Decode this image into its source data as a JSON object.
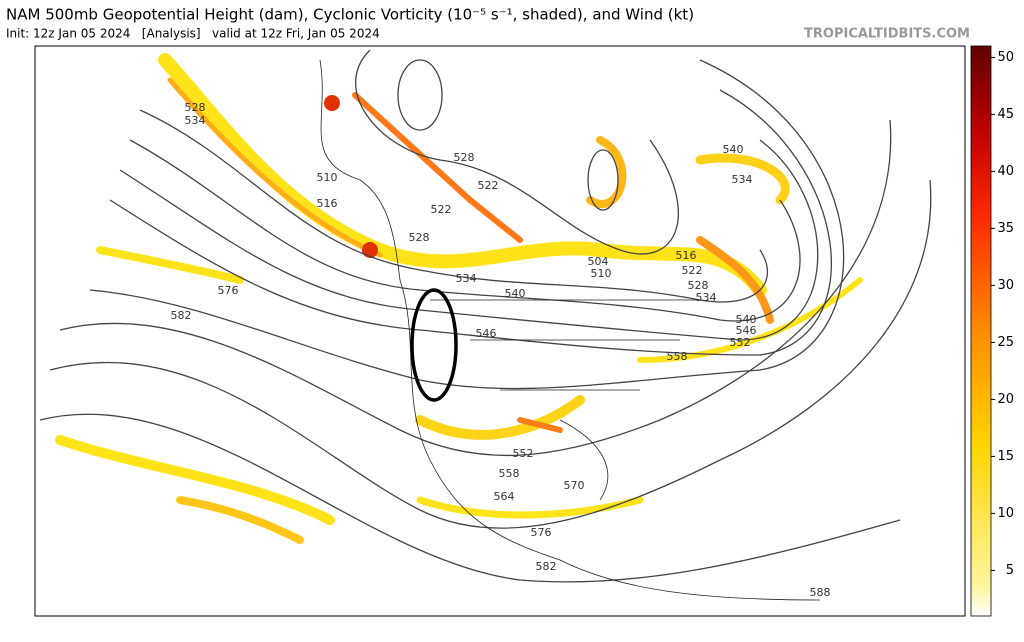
{
  "header": {
    "title": "NAM 500mb Geopotential Height (dam), Cyclonic Vorticity (10⁻⁵ s⁻¹, shaded), and Wind (kt)",
    "subtitle": "Init: 12z Jan 05 2024   [Analysis]   valid at 12z Fri, Jan 05 2024",
    "watermark": "TROPICALTIDBITS.COM"
  },
  "contour_labels": [
    528,
    534,
    510,
    516,
    528,
    522,
    522,
    528,
    534,
    540,
    546,
    504,
    510,
    516,
    522,
    528,
    534,
    540,
    546,
    552,
    558,
    540,
    534,
    576,
    582,
    552,
    558,
    564,
    570,
    576,
    582,
    588
  ],
  "colorbar": {
    "lim": [
      1,
      51
    ],
    "ticks": [
      5,
      10,
      15,
      20,
      25,
      30,
      35,
      40,
      45,
      50
    ]
  }
}
